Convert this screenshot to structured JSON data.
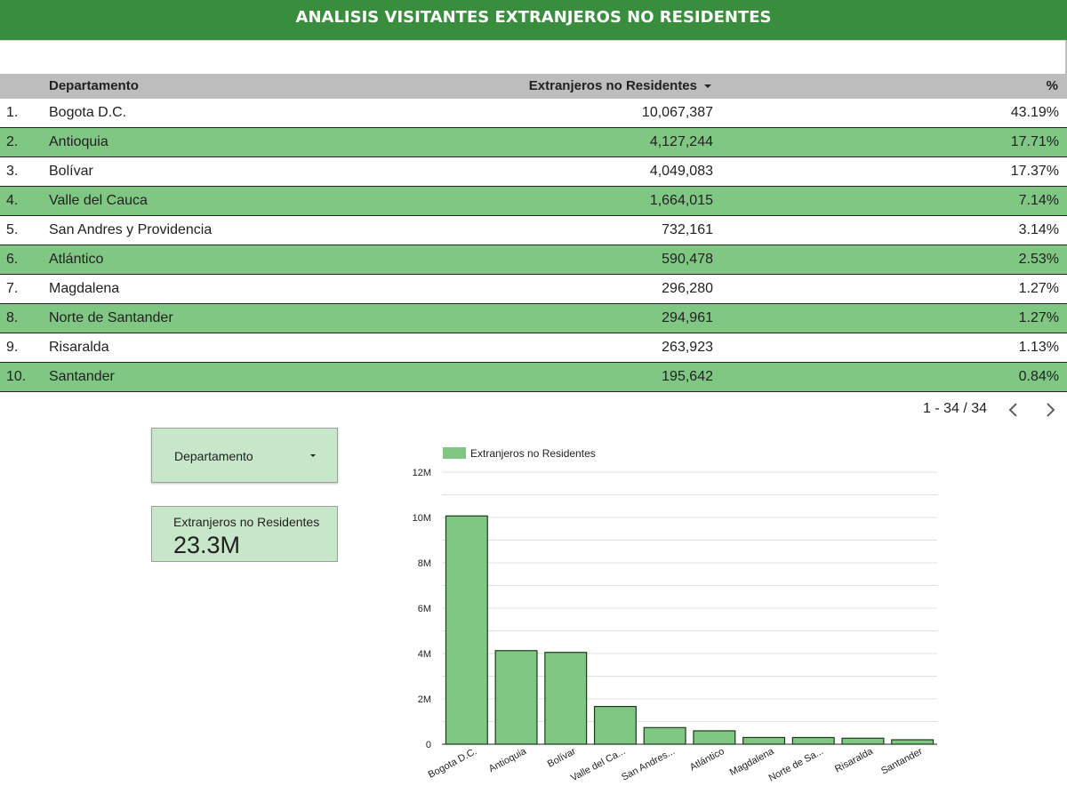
{
  "header": {
    "title": "ANALISIS VISITANTES EXTRANJEROS NO RESIDENTES"
  },
  "colors": {
    "header_bg": "#388e3c",
    "row_alt": "#81c784",
    "table_head": "#bdbdbd",
    "card_bg": "#c8e6c9",
    "bar_fill": "#81c784",
    "bar_stroke": "#1b3a1c"
  },
  "table": {
    "columns": [
      "Departamento",
      "Extranjeros no Residentes",
      "%"
    ],
    "sort_icon": "sort-desc-icon",
    "rows": [
      {
        "idx": "1.",
        "name": "Bogota D.C.",
        "value": "10,067,387",
        "pct": "43.19%"
      },
      {
        "idx": "2.",
        "name": "Antioquia",
        "value": "4,127,244",
        "pct": "17.71%"
      },
      {
        "idx": "3.",
        "name": "Bolívar",
        "value": "4,049,083",
        "pct": "17.37%"
      },
      {
        "idx": "4.",
        "name": "Valle del Cauca",
        "value": "1,664,015",
        "pct": "7.14%"
      },
      {
        "idx": "5.",
        "name": "San Andres y Providencia",
        "value": "732,161",
        "pct": "3.14%"
      },
      {
        "idx": "6.",
        "name": "Atlántico",
        "value": "590,478",
        "pct": "2.53%"
      },
      {
        "idx": "7.",
        "name": "Magdalena",
        "value": "296,280",
        "pct": "1.27%"
      },
      {
        "idx": "8.",
        "name": "Norte de Santander",
        "value": "294,961",
        "pct": "1.27%"
      },
      {
        "idx": "9.",
        "name": "Risaralda",
        "value": "263,923",
        "pct": "1.13%"
      },
      {
        "idx": "10.",
        "name": "Santander",
        "value": "195,642",
        "pct": "0.84%"
      }
    ],
    "pagination": {
      "label": "1 - 34 / 34",
      "prev_icon": "chevron-left-icon",
      "next_icon": "chevron-right-icon"
    }
  },
  "filter": {
    "label": "Departamento",
    "icon": "dropdown-caret-icon"
  },
  "scorecard": {
    "label": "Extranjeros no Residentes",
    "value": "23.3M"
  },
  "chart_data": {
    "type": "bar",
    "categories": [
      "Bogota D.C.",
      "Antioquia",
      "Bolívar",
      "Valle del Ca...",
      "San Andres...",
      "Atlántico",
      "Magdalena",
      "Norte de Sa...",
      "Risaralda",
      "Santander"
    ],
    "series": [
      {
        "name": "Extranjeros no Residentes",
        "values": [
          10067387,
          4127244,
          4049083,
          1664015,
          732161,
          590478,
          296280,
          294961,
          263923,
          195642
        ]
      }
    ],
    "ylim": [
      0,
      12000000
    ],
    "yticks": [
      0,
      2000000,
      4000000,
      6000000,
      8000000,
      10000000,
      12000000
    ],
    "ytick_labels": [
      "0",
      "2M",
      "4M",
      "6M",
      "8M",
      "10M",
      "12M"
    ],
    "grid": true,
    "legend": "top-left"
  }
}
